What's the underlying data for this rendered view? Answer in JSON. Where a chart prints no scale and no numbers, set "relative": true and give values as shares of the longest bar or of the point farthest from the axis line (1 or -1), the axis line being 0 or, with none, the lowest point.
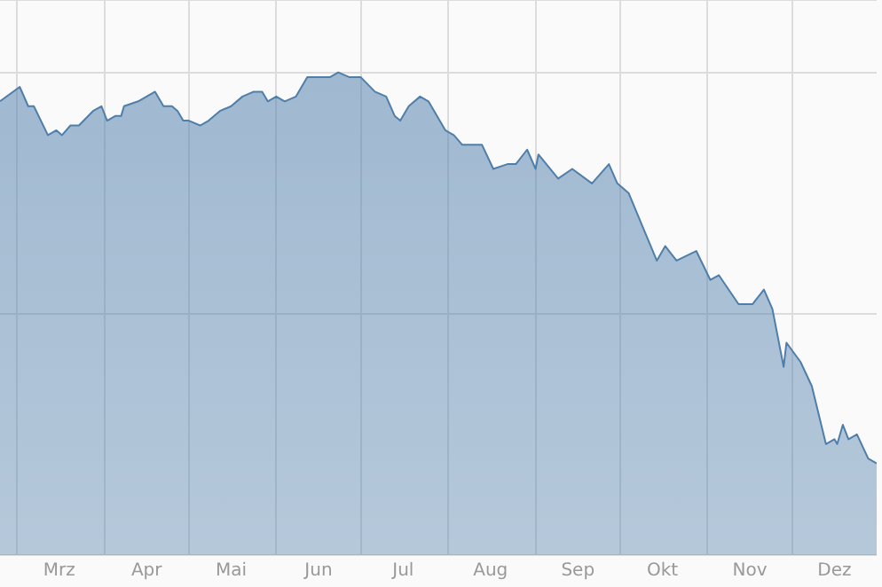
{
  "chart_data": {
    "type": "area",
    "relative": true,
    "grid": true,
    "legend": false,
    "marker": "none",
    "xlim": [
      "--02-23",
      "--12-31"
    ],
    "xticks": [
      {
        "value": "--03-01",
        "label": null
      },
      {
        "value": "--03-16",
        "label": "Mrz"
      },
      {
        "value": "--04-01",
        "label": null
      },
      {
        "value": "--04-16",
        "label": "Apr"
      },
      {
        "value": "--05-01",
        "label": null
      },
      {
        "value": "--05-16",
        "label": "Mai"
      },
      {
        "value": "--06-01",
        "label": null
      },
      {
        "value": "--06-16",
        "label": "Jun"
      },
      {
        "value": "--07-01",
        "label": null
      },
      {
        "value": "--07-16",
        "label": "Jul"
      },
      {
        "value": "--08-01",
        "label": null
      },
      {
        "value": "--08-16",
        "label": "Aug"
      },
      {
        "value": "--09-01",
        "label": null
      },
      {
        "value": "--09-16",
        "label": "Sep"
      },
      {
        "value": "--10-01",
        "label": null
      },
      {
        "value": "--10-16",
        "label": "Okt"
      },
      {
        "value": "--11-01",
        "label": null
      },
      {
        "value": "--11-16",
        "label": "Nov"
      },
      {
        "value": "--12-01",
        "label": null
      },
      {
        "value": "--12-16",
        "label": "Dez"
      }
    ],
    "x": [
      "--02-23",
      "--03-02",
      "--03-05",
      "--03-07",
      "--03-12",
      "--03-15",
      "--03-17",
      "--03-20",
      "--03-23",
      "--03-28",
      "--03-31",
      "--04-02",
      "--04-05",
      "--04-07",
      "--04-08",
      "--04-13",
      "--04-19",
      "--04-22",
      "--04-25",
      "--04-27",
      "--04-29",
      "--05-01",
      "--05-05",
      "--05-08",
      "--05-12",
      "--05-16",
      "--05-20",
      "--05-24",
      "--05-27",
      "--05-29",
      "--06-01",
      "--06-04",
      "--06-08",
      "--06-12",
      "--06-15",
      "--06-20",
      "--06-23",
      "--06-27",
      "--07-01",
      "--07-06",
      "--07-10",
      "--07-13",
      "--07-15",
      "--07-18",
      "--07-22",
      "--07-25",
      "--07-31",
      "--08-03",
      "--08-06",
      "--08-13",
      "--08-17",
      "--08-22",
      "--08-25",
      "--08-29",
      "--09-01",
      "--09-02",
      "--09-09",
      "--09-14",
      "--09-21",
      "--09-27",
      "--09-30",
      "--10-04",
      "--10-09",
      "--10-14",
      "--10-17",
      "--10-21",
      "--10-28",
      "--11-02",
      "--11-05",
      "--11-12",
      "--11-17",
      "--11-21",
      "--11-24",
      "--11-28",
      "--11-29",
      "--12-04",
      "--12-08",
      "--12-13",
      "--12-16",
      "--12-17",
      "--12-19",
      "--12-21",
      "--12-24",
      "--12-28",
      "--12-31"
    ],
    "series": [
      {
        "color": "#4f7eab",
        "values": [
          0.94,
          0.97,
          0.93,
          0.93,
          0.87,
          0.88,
          0.87,
          0.89,
          0.89,
          0.92,
          0.93,
          0.9,
          0.91,
          0.91,
          0.93,
          0.94,
          0.96,
          0.93,
          0.93,
          0.92,
          0.9,
          0.9,
          0.89,
          0.9,
          0.92,
          0.93,
          0.95,
          0.96,
          0.96,
          0.94,
          0.95,
          0.94,
          0.95,
          0.99,
          0.99,
          0.99,
          1.0,
          0.99,
          0.99,
          0.96,
          0.95,
          0.91,
          0.9,
          0.93,
          0.95,
          0.94,
          0.88,
          0.87,
          0.85,
          0.85,
          0.8,
          0.81,
          0.81,
          0.84,
          0.8,
          0.83,
          0.78,
          0.8,
          0.77,
          0.81,
          0.77,
          0.75,
          0.68,
          0.61,
          0.64,
          0.61,
          0.63,
          0.57,
          0.58,
          0.52,
          0.52,
          0.55,
          0.51,
          0.39,
          0.44,
          0.4,
          0.35,
          0.23,
          0.24,
          0.23,
          0.27,
          0.24,
          0.25,
          0.2,
          0.19
        ]
      }
    ]
  }
}
